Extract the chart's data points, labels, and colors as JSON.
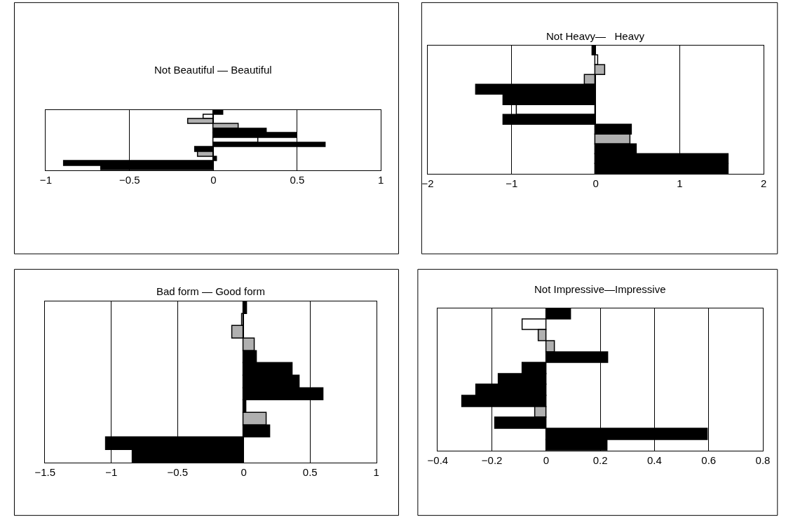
{
  "chart_data": [
    {
      "type": "bar",
      "orientation": "horizontal",
      "title": "Not Beautiful — Beautiful",
      "categories": [
        null,
        null,
        null,
        null,
        null,
        null,
        null,
        null,
        null,
        null,
        null,
        null,
        null
      ],
      "values": [
        0.06,
        -0.06,
        -0.15,
        0.15,
        0.32,
        0.5,
        0.27,
        0.67,
        -0.11,
        -0.09,
        0.02,
        -0.89,
        -0.67
      ],
      "colors": [
        "#000000",
        "#ffffff",
        "#b0b0b0",
        "#b0b0b0",
        "#000000",
        "#000000",
        "#ffffff",
        "#000000",
        "#000000",
        "#b0b0b0",
        "#000000",
        "#000000",
        "#000000"
      ],
      "xlim": [
        -1,
        1
      ],
      "xticks": [
        -1,
        -0.5,
        0,
        0.5,
        1
      ],
      "grid": "x",
      "tick_labels": "x"
    },
    {
      "type": "bar",
      "orientation": "horizontal",
      "title": "Not Heavy—   Heavy",
      "categories": [
        null,
        null,
        null,
        null,
        null,
        null,
        null,
        null,
        null,
        null,
        null,
        null,
        null
      ],
      "values": [
        -0.04,
        0.03,
        0.11,
        -0.13,
        -1.42,
        -1.1,
        -0.94,
        -1.1,
        0.43,
        0.41,
        0.49,
        1.58,
        1.58
      ],
      "colors": [
        "#000000",
        "#ffffff",
        "#b0b0b0",
        "#b0b0b0",
        "#000000",
        "#000000",
        "#ffffff",
        "#000000",
        "#000000",
        "#b0b0b0",
        "#000000",
        "#000000",
        "#000000"
      ],
      "xlim": [
        -2,
        2
      ],
      "xticks": [
        -2,
        -1,
        0,
        1,
        2
      ],
      "grid": "x",
      "tick_labels": "x"
    },
    {
      "type": "bar",
      "orientation": "horizontal",
      "title": "Bad form — Good form",
      "categories": [
        null,
        null,
        null,
        null,
        null,
        null,
        null,
        null,
        null,
        null,
        null,
        null,
        null
      ],
      "values": [
        0.025,
        -0.015,
        -0.085,
        0.085,
        0.1,
        0.37,
        0.42,
        0.6,
        0.02,
        0.17,
        0.2,
        -1.04,
        -0.84
      ],
      "colors": [
        "#000000",
        "#ffffff",
        "#b0b0b0",
        "#b0b0b0",
        "#000000",
        "#000000",
        "#000000",
        "#000000",
        "#000000",
        "#b0b0b0",
        "#000000",
        "#000000",
        "#000000"
      ],
      "xlim": [
        -1.5,
        1
      ],
      "xticks": [
        -1.5,
        -1,
        -0.5,
        0,
        0.5,
        1
      ],
      "grid": "x",
      "tick_labels": "x"
    },
    {
      "type": "bar",
      "orientation": "horizontal",
      "title": "Not Impressive—Impressive",
      "categories": [
        null,
        null,
        null,
        null,
        null,
        null,
        null,
        null,
        null,
        null,
        null,
        null,
        null
      ],
      "values": [
        0.093,
        -0.088,
        -0.028,
        0.031,
        0.228,
        -0.088,
        -0.174,
        -0.257,
        -0.309,
        -0.039,
        -0.188,
        0.597,
        0.226
      ],
      "colors": [
        "#000000",
        "#ffffff",
        "#b0b0b0",
        "#b0b0b0",
        "#000000",
        "#000000",
        "#000000",
        "#000000",
        "#000000",
        "#b0b0b0",
        "#000000",
        "#000000",
        "#000000"
      ],
      "xlim": [
        -0.4,
        0.8
      ],
      "xticks": [
        -0.4,
        -0.2,
        0,
        0.2,
        0.4,
        0.6,
        0.8
      ],
      "grid": "x",
      "tick_labels": "x"
    }
  ]
}
